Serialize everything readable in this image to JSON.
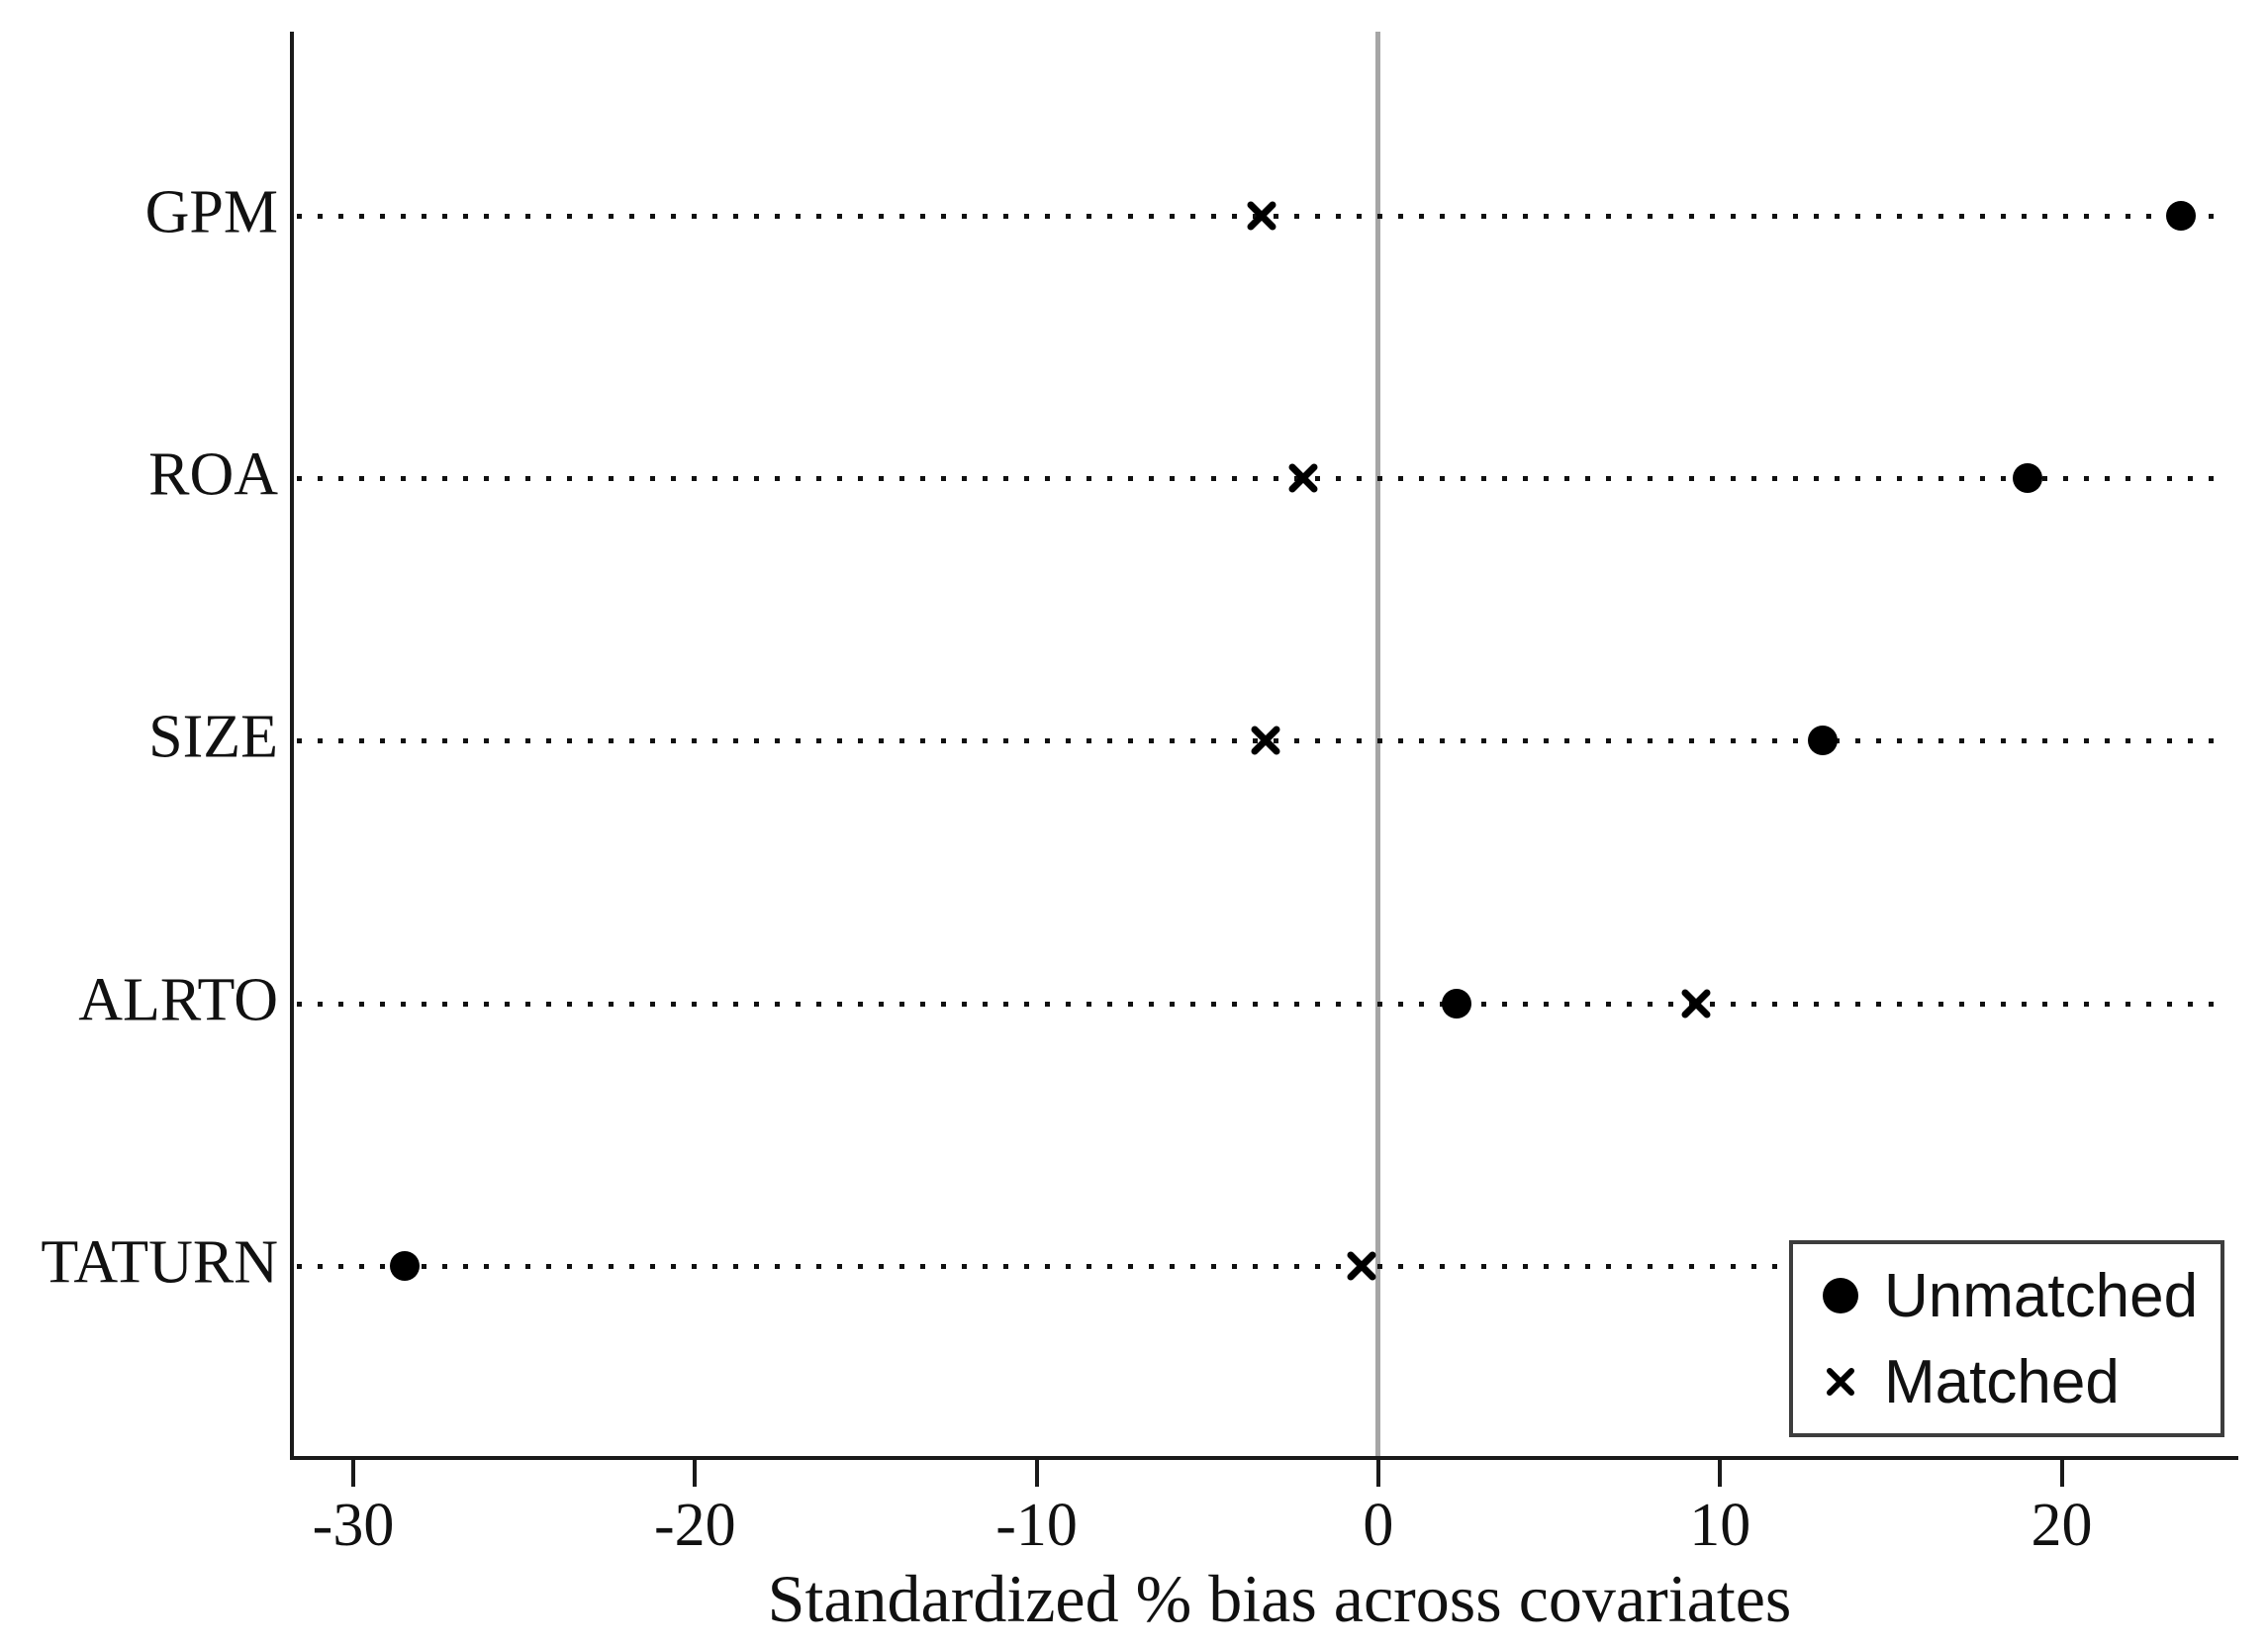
{
  "chart_data": {
    "type": "scatter",
    "subtype": "horizontal-dot-plot",
    "title": "",
    "xlabel": "Standardized % bias across covariates",
    "ylabel": "",
    "categories": [
      "GPM",
      "ROA",
      "SIZE",
      "ALRTO",
      "TATURN"
    ],
    "series": [
      {
        "name": "Unmatched",
        "marker": "filled-circle",
        "values": [
          23.5,
          19.0,
          13.0,
          2.3,
          -28.5
        ]
      },
      {
        "name": "Matched",
        "marker": "x-cross",
        "values": [
          -3.4,
          -2.2,
          -3.3,
          9.3,
          -0.5
        ]
      }
    ],
    "x_ticks": [
      -30,
      -20,
      -10,
      0,
      10,
      20
    ],
    "xlim": [
      -31.8,
      25.2
    ],
    "zero_reference_line": 0,
    "row_guides": "dotted",
    "grid": "off",
    "legend_position": "bottom-right"
  },
  "colors": {
    "background": "#ffffff",
    "marker": "#000000",
    "axis": "#1a1a1a",
    "text": "#111111",
    "dotted_line": "#111111",
    "zero_line": "#a6a6a6",
    "legend_border": "#3d3d3d"
  }
}
